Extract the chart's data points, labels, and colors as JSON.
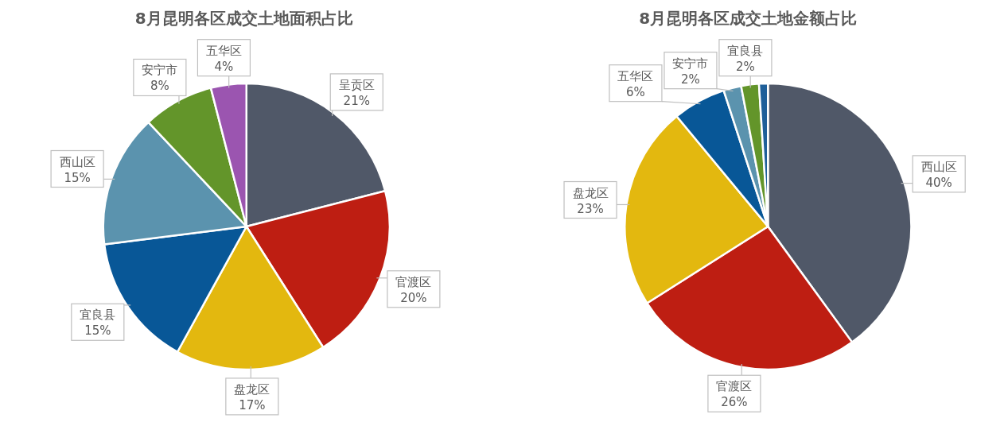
{
  "chart_data": [
    {
      "type": "pie",
      "title": "8月昆明各区成交土地面积占比",
      "categories": [
        "呈贡区",
        "官渡区",
        "盘龙区",
        "宜良县",
        "西山区",
        "安宁市",
        "五华区"
      ],
      "values": [
        21,
        20,
        17,
        15,
        15,
        8,
        4
      ],
      "colors": [
        "#505868",
        "#be1e12",
        "#e3b80f",
        "#085797",
        "#5b93ae",
        "#63952a",
        "#9b55b0"
      ],
      "value_labels": [
        "21%",
        "20%",
        "17%",
        "15%",
        "15%",
        "8%",
        "4%"
      ],
      "legend": false
    },
    {
      "type": "pie",
      "title": "8月昆明各区成交土地金额占比",
      "categories": [
        "西山区",
        "官渡区",
        "盘龙区",
        "五华区",
        "安宁市",
        "宜良县",
        null
      ],
      "values": [
        40,
        26,
        23,
        6,
        2,
        2,
        1
      ],
      "colors": [
        "#505868",
        "#be1e12",
        "#e3b80f",
        "#085797",
        "#5b93ae",
        "#63952a",
        "#1f5f99"
      ],
      "value_labels": [
        "40%",
        "26%",
        "23%",
        "6%",
        "2%",
        "2%",
        null
      ],
      "legend": false
    }
  ]
}
